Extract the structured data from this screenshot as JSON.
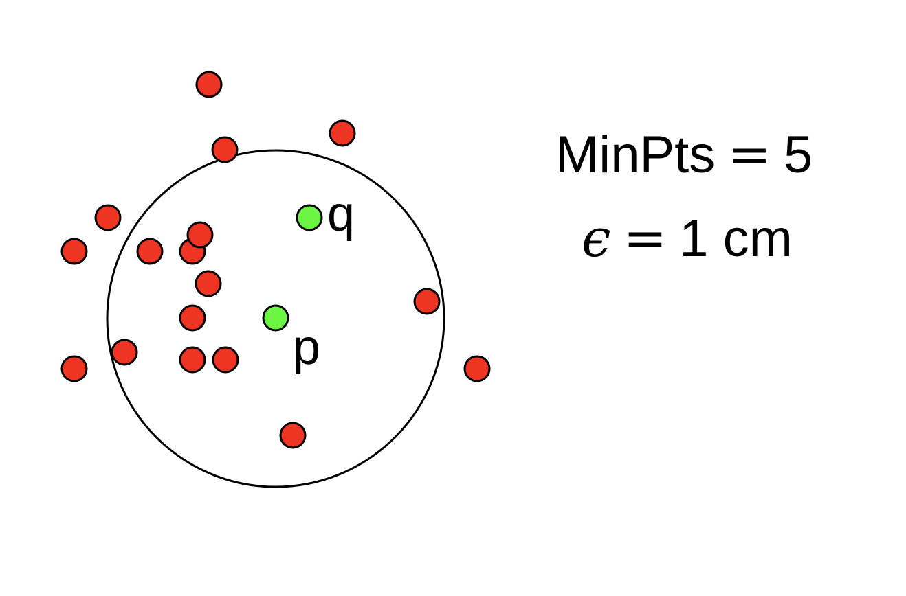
{
  "diagram": {
    "colors": {
      "noise_point": "#ee3524",
      "highlight_point": "#6cf542",
      "stroke": "#000000"
    },
    "labels": {
      "p": "p",
      "q": "q"
    },
    "params": {
      "minpts_name": "MinPts",
      "minpts_eq": "=",
      "minpts_value": "5",
      "eps_symbol": "ϵ",
      "eps_eq": "=",
      "eps_value": "1 cm"
    }
  }
}
